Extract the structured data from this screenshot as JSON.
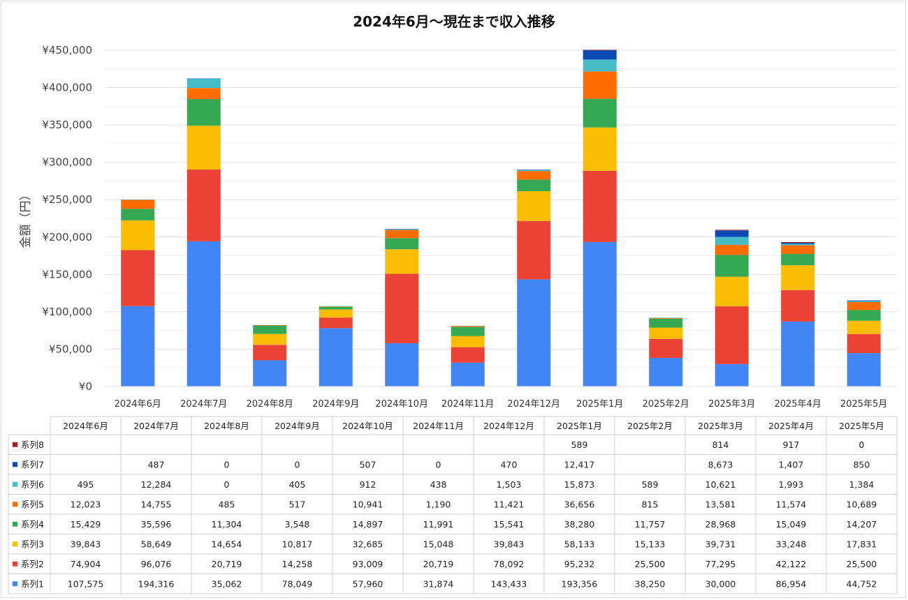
{
  "chart_data": {
    "type": "bar",
    "stacked": true,
    "title": "2024年6月～現在まで収入推移",
    "ylabel": "金額（円）",
    "xlabel": "",
    "ylim": [
      0,
      450000
    ],
    "yticks": [
      0,
      50000,
      100000,
      150000,
      200000,
      250000,
      300000,
      350000,
      400000,
      450000
    ],
    "ytick_labels": [
      "¥0",
      "¥50,000",
      "¥100,000",
      "¥150,000",
      "¥200,000",
      "¥250,000",
      "¥300,000",
      "¥350,000",
      "¥400,000",
      "¥450,000"
    ],
    "grid": true,
    "legend": "data-table",
    "categories": [
      "2024年6月",
      "2024年7月",
      "2024年8月",
      "2024年9月",
      "2024年10月",
      "2024年11月",
      "2024年12月",
      "2025年1月",
      "2025年2月",
      "2025年3月",
      "2025年4月",
      "2025年5月"
    ],
    "series": [
      {
        "name": "系列1",
        "color": "#4285f4",
        "values": [
          107575,
          194316,
          35062,
          78049,
          57960,
          31874,
          143433,
          193356,
          38250,
          30000,
          86954,
          44752
        ],
        "labels": [
          "107,575",
          "194,316",
          "35,062",
          "78,049",
          "57,960",
          "31,874",
          "143,433",
          "193,356",
          "38,250",
          "30,000",
          "86,954",
          "44,752"
        ]
      },
      {
        "name": "系列2",
        "color": "#ea4335",
        "values": [
          74904,
          96076,
          20719,
          14258,
          93009,
          20719,
          78092,
          95232,
          25500,
          77295,
          42122,
          25500
        ],
        "labels": [
          "74,904",
          "96,076",
          "20,719",
          "14,258",
          "93,009",
          "20,719",
          "78,092",
          "95,232",
          "25,500",
          "77,295",
          "42,122",
          "25,500"
        ]
      },
      {
        "name": "系列3",
        "color": "#fbbc04",
        "values": [
          39843,
          58649,
          14654,
          10817,
          32685,
          15048,
          39843,
          58133,
          15133,
          39731,
          33248,
          17831
        ],
        "labels": [
          "39,843",
          "58,649",
          "14,654",
          "10,817",
          "32,685",
          "15,048",
          "39,843",
          "58,133",
          "15,133",
          "39,731",
          "33,248",
          "17,831"
        ]
      },
      {
        "name": "系列4",
        "color": "#34a853",
        "values": [
          15429,
          35596,
          11304,
          3548,
          14897,
          11991,
          15541,
          38280,
          11757,
          28968,
          15049,
          14207
        ],
        "labels": [
          "15,429",
          "35,596",
          "11,304",
          "3,548",
          "14,897",
          "11,991",
          "15,541",
          "38,280",
          "11,757",
          "28,968",
          "15,049",
          "14,207"
        ]
      },
      {
        "name": "系列5",
        "color": "#ff6d01",
        "values": [
          12023,
          14755,
          485,
          517,
          10941,
          1190,
          11421,
          36656,
          815,
          13581,
          11574,
          10689
        ],
        "labels": [
          "12,023",
          "14,755",
          "485",
          "517",
          "10,941",
          "1,190",
          "11,421",
          "36,656",
          "815",
          "13,581",
          "11,574",
          "10,689"
        ]
      },
      {
        "name": "系列6",
        "color": "#46bdc6",
        "values": [
          495,
          12284,
          0,
          405,
          912,
          438,
          1503,
          15873,
          589,
          10621,
          1993,
          1384
        ],
        "labels": [
          "495",
          "12,284",
          "0",
          "405",
          "912",
          "438",
          "1,503",
          "15,873",
          "589",
          "10,621",
          "1,993",
          "1,384"
        ]
      },
      {
        "name": "系列7",
        "color": "#0b49b5",
        "values": [
          null,
          487,
          0,
          0,
          507,
          0,
          470,
          12417,
          null,
          8673,
          1407,
          850
        ],
        "labels": [
          "",
          "487",
          "0",
          "0",
          "507",
          "0",
          "470",
          "12,417",
          "",
          "8,673",
          "1,407",
          "850"
        ]
      },
      {
        "name": "系列8",
        "color": "#a51c1c",
        "values": [
          null,
          null,
          null,
          null,
          null,
          null,
          null,
          589,
          null,
          814,
          917,
          0
        ],
        "labels": [
          "",
          "",
          "",
          "",
          "",
          "",
          "",
          "589",
          "",
          "814",
          "917",
          "0"
        ]
      }
    ]
  }
}
